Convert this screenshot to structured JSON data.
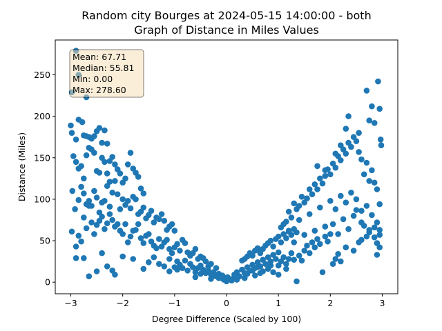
{
  "chart_data": {
    "type": "scatter",
    "title_line1": "Random city Bourges at 2024-05-15 14:00:00  - both",
    "title_line2": "Graph of Distance in Miles Values",
    "xlabel": "Degree Difference (Scaled by 100)",
    "ylabel": "Distance (Miles)",
    "xlim": [
      -3.3,
      3.3
    ],
    "ylim": [
      -14,
      292
    ],
    "xticks": [
      -3,
      -2,
      -1,
      0,
      1,
      2,
      3
    ],
    "yticks": [
      0,
      50,
      100,
      150,
      200,
      250
    ],
    "point_color": "#1f77b4",
    "stats": {
      "mean": "Mean: 67.71",
      "median": "Median: 55.81",
      "min": "Min: 0.00",
      "max": "Max: 278.60"
    },
    "points": [
      [
        -2.98,
        229
      ],
      [
        -2.9,
        279
      ],
      [
        -2.85,
        250
      ],
      [
        -2.7,
        223
      ],
      [
        -3.0,
        189
      ],
      [
        -2.98,
        180
      ],
      [
        -2.9,
        172
      ],
      [
        -2.85,
        196
      ],
      [
        -2.78,
        193
      ],
      [
        -2.75,
        177
      ],
      [
        -2.7,
        176
      ],
      [
        -2.65,
        175
      ],
      [
        -2.6,
        173
      ],
      [
        -2.55,
        176
      ],
      [
        -2.5,
        182
      ],
      [
        -2.45,
        186
      ],
      [
        -2.4,
        168
      ],
      [
        -2.35,
        183
      ],
      [
        -2.3,
        167
      ],
      [
        -2.25,
        146
      ],
      [
        -2.95,
        152
      ],
      [
        -2.9,
        145
      ],
      [
        -2.85,
        137
      ],
      [
        -2.8,
        140
      ],
      [
        -2.75,
        125
      ],
      [
        -2.7,
        153
      ],
      [
        -2.65,
        162
      ],
      [
        -2.6,
        160
      ],
      [
        -2.55,
        156
      ],
      [
        -2.5,
        134
      ],
      [
        -2.45,
        132
      ],
      [
        -2.4,
        150
      ],
      [
        -2.35,
        145
      ],
      [
        -2.3,
        131
      ],
      [
        -2.25,
        121
      ],
      [
        -2.2,
        151
      ],
      [
        -2.15,
        142
      ],
      [
        -2.1,
        136
      ],
      [
        -2.05,
        131
      ],
      [
        -2.0,
        120
      ],
      [
        -1.95,
        125
      ],
      [
        -1.9,
        142
      ],
      [
        -1.85,
        156
      ],
      [
        -1.8,
        137
      ],
      [
        -1.75,
        132
      ],
      [
        -1.7,
        127
      ],
      [
        -1.65,
        113
      ],
      [
        -1.6,
        107
      ],
      [
        -2.97,
        110
      ],
      [
        -2.92,
        88
      ],
      [
        -2.85,
        99
      ],
      [
        -2.8,
        115
      ],
      [
        -2.75,
        107
      ],
      [
        -2.7,
        94
      ],
      [
        -2.65,
        98
      ],
      [
        -2.6,
        92
      ],
      [
        -2.55,
        110
      ],
      [
        -2.5,
        102
      ],
      [
        -2.45,
        84
      ],
      [
        -2.4,
        96
      ],
      [
        -2.35,
        98
      ],
      [
        -2.3,
        116
      ],
      [
        -2.25,
        91
      ],
      [
        -2.2,
        108
      ],
      [
        -2.15,
        122
      ],
      [
        -2.1,
        106
      ],
      [
        -2.05,
        88
      ],
      [
        -2.0,
        100
      ],
      [
        -1.95,
        93
      ],
      [
        -1.9,
        98
      ],
      [
        -1.85,
        89
      ],
      [
        -1.8,
        103
      ],
      [
        -1.75,
        100
      ],
      [
        -1.7,
        82
      ],
      [
        -1.65,
        85
      ],
      [
        -1.6,
        90
      ],
      [
        -1.55,
        77
      ],
      [
        -1.5,
        81
      ],
      [
        -1.45,
        86
      ],
      [
        -1.4,
        72
      ],
      [
        -1.35,
        78
      ],
      [
        -1.3,
        76
      ],
      [
        -1.25,
        82
      ],
      [
        -1.2,
        74
      ],
      [
        -1.15,
        63
      ],
      [
        -1.1,
        67
      ],
      [
        -1.05,
        70
      ],
      [
        -1.0,
        62
      ],
      [
        -2.98,
        61
      ],
      [
        -2.9,
        43
      ],
      [
        -2.85,
        56
      ],
      [
        -2.8,
        49
      ],
      [
        -2.75,
        78
      ],
      [
        -2.7,
        65
      ],
      [
        -2.65,
        92
      ],
      [
        -2.6,
        72
      ],
      [
        -2.55,
        58
      ],
      [
        -2.5,
        69
      ],
      [
        -2.45,
        74
      ],
      [
        -2.4,
        79
      ],
      [
        -2.35,
        64
      ],
      [
        -2.3,
        71
      ],
      [
        -2.25,
        82
      ],
      [
        -2.2,
        75
      ],
      [
        -2.15,
        67
      ],
      [
        -2.1,
        70
      ],
      [
        -2.05,
        62
      ],
      [
        -2.0,
        58
      ],
      [
        -1.95,
        70
      ],
      [
        -1.9,
        48
      ],
      [
        -1.85,
        55
      ],
      [
        -1.8,
        62
      ],
      [
        -1.75,
        63
      ],
      [
        -1.7,
        70
      ],
      [
        -1.65,
        53
      ],
      [
        -1.6,
        47
      ],
      [
        -1.55,
        56
      ],
      [
        -1.5,
        58
      ],
      [
        -1.45,
        49
      ],
      [
        -1.4,
        44
      ],
      [
        -1.35,
        41
      ],
      [
        -1.3,
        52
      ],
      [
        -1.25,
        43
      ],
      [
        -1.2,
        48
      ],
      [
        -1.15,
        51
      ],
      [
        -1.1,
        40
      ],
      [
        -1.05,
        35
      ],
      [
        -1.0,
        42
      ],
      [
        -0.95,
        46
      ],
      [
        -0.9,
        38
      ],
      [
        -0.85,
        51
      ],
      [
        -0.8,
        47
      ],
      [
        -0.75,
        36
      ],
      [
        -0.7,
        32
      ],
      [
        -0.65,
        35
      ],
      [
        -0.6,
        40
      ],
      [
        -0.55,
        28
      ],
      [
        -0.5,
        31
      ],
      [
        -2.9,
        29
      ],
      [
        -2.75,
        29
      ],
      [
        -2.65,
        7
      ],
      [
        -2.5,
        13
      ],
      [
        -2.4,
        35
      ],
      [
        -2.3,
        19
      ],
      [
        -2.2,
        14
      ],
      [
        -2.15,
        9
      ],
      [
        -2.0,
        31
      ],
      [
        -1.8,
        28
      ],
      [
        -1.6,
        16
      ],
      [
        -1.5,
        24
      ],
      [
        -1.4,
        30
      ],
      [
        -1.3,
        22
      ],
      [
        -1.2,
        19
      ],
      [
        -1.1,
        13
      ],
      [
        -1.0,
        18
      ],
      [
        -0.95,
        25
      ],
      [
        -0.9,
        21
      ],
      [
        -0.85,
        17
      ],
      [
        -0.8,
        26
      ],
      [
        -0.75,
        14
      ],
      [
        -0.7,
        22
      ],
      [
        -0.65,
        18
      ],
      [
        -0.6,
        12
      ],
      [
        -0.55,
        17
      ],
      [
        -0.5,
        20
      ],
      [
        -0.45,
        15
      ],
      [
        -0.4,
        11
      ],
      [
        -0.35,
        14
      ],
      [
        -0.3,
        9
      ],
      [
        -0.25,
        12
      ],
      [
        -0.2,
        7
      ],
      [
        -0.15,
        10
      ],
      [
        -0.1,
        5
      ],
      [
        -0.05,
        3
      ],
      [
        0.0,
        1
      ],
      [
        0.05,
        4
      ],
      [
        0.1,
        2
      ],
      [
        -0.4,
        25
      ],
      [
        -0.3,
        22
      ],
      [
        -0.2,
        17
      ],
      [
        -0.45,
        29
      ],
      [
        -0.35,
        19
      ],
      [
        -0.25,
        8
      ],
      [
        -0.15,
        5
      ],
      [
        -0.08,
        8
      ],
      [
        0.02,
        6
      ],
      [
        0.12,
        4
      ],
      [
        0.15,
        9
      ],
      [
        0.2,
        12
      ],
      [
        0.25,
        7
      ],
      [
        0.3,
        15
      ],
      [
        0.35,
        11
      ],
      [
        0.4,
        18
      ],
      [
        0.45,
        14
      ],
      [
        0.5,
        21
      ],
      [
        0.55,
        17
      ],
      [
        0.6,
        24
      ],
      [
        0.65,
        19
      ],
      [
        0.7,
        27
      ],
      [
        0.75,
        22
      ],
      [
        0.8,
        30
      ],
      [
        0.85,
        25
      ],
      [
        0.9,
        33
      ],
      [
        0.95,
        28
      ],
      [
        1.0,
        36
      ],
      [
        0.3,
        26
      ],
      [
        0.35,
        28
      ],
      [
        0.4,
        31
      ],
      [
        0.45,
        35
      ],
      [
        0.5,
        32
      ],
      [
        0.55,
        38
      ],
      [
        0.6,
        41
      ],
      [
        0.65,
        35
      ],
      [
        0.7,
        40
      ],
      [
        0.75,
        44
      ],
      [
        0.8,
        47
      ],
      [
        0.85,
        50
      ],
      [
        0.9,
        43
      ],
      [
        0.95,
        52
      ],
      [
        1.0,
        55
      ],
      [
        1.05,
        48
      ],
      [
        1.1,
        58
      ],
      [
        1.15,
        53
      ],
      [
        1.2,
        61
      ],
      [
        1.25,
        57
      ],
      [
        1.3,
        64
      ],
      [
        1.35,
        60
      ],
      [
        0.4,
        10
      ],
      [
        0.5,
        14
      ],
      [
        0.6,
        18
      ],
      [
        0.7,
        13
      ],
      [
        0.8,
        16
      ],
      [
        0.9,
        12
      ],
      [
        1.0,
        20
      ],
      [
        1.05,
        25
      ],
      [
        1.1,
        30
      ],
      [
        1.15,
        22
      ],
      [
        1.2,
        28
      ],
      [
        1.25,
        35
      ],
      [
        1.3,
        27
      ],
      [
        1.35,
        1
      ],
      [
        1.4,
        32
      ],
      [
        1.45,
        26
      ],
      [
        1.5,
        38
      ],
      [
        1.55,
        44
      ],
      [
        1.6,
        35
      ],
      [
        1.65,
        48
      ],
      [
        1.7,
        42
      ],
      [
        1.75,
        52
      ],
      [
        1.8,
        46
      ],
      [
        1.85,
        12
      ],
      [
        1.9,
        55
      ],
      [
        1.95,
        49
      ],
      [
        2.0,
        58
      ],
      [
        2.05,
        22
      ],
      [
        2.1,
        28
      ],
      [
        2.15,
        34
      ],
      [
        2.2,
        25
      ],
      [
        2.3,
        42
      ],
      [
        2.45,
        38
      ],
      [
        2.55,
        48
      ],
      [
        2.6,
        51
      ],
      [
        2.7,
        55
      ],
      [
        2.75,
        60
      ],
      [
        2.85,
        54
      ],
      [
        2.9,
        33
      ],
      [
        2.95,
        57
      ],
      [
        1.05,
        66
      ],
      [
        1.1,
        70
      ],
      [
        1.15,
        73
      ],
      [
        1.2,
        85
      ],
      [
        1.25,
        78
      ],
      [
        1.3,
        95
      ],
      [
        1.35,
        88
      ],
      [
        1.4,
        92
      ],
      [
        1.45,
        103
      ],
      [
        1.5,
        96
      ],
      [
        1.55,
        101
      ],
      [
        1.6,
        112
      ],
      [
        1.65,
        106
      ],
      [
        1.7,
        118
      ],
      [
        1.75,
        112
      ],
      [
        1.8,
        125
      ],
      [
        1.85,
        119
      ],
      [
        1.9,
        128
      ],
      [
        1.95,
        136
      ],
      [
        2.0,
        130
      ],
      [
        2.05,
        143
      ],
      [
        2.1,
        138
      ],
      [
        2.15,
        152
      ],
      [
        2.2,
        147
      ],
      [
        2.25,
        160
      ],
      [
        2.3,
        155
      ],
      [
        2.35,
        168
      ],
      [
        2.4,
        163
      ],
      [
        2.45,
        175
      ],
      [
        2.5,
        170
      ],
      [
        2.55,
        157
      ],
      [
        2.6,
        148
      ],
      [
        2.65,
        130
      ],
      [
        2.7,
        144
      ],
      [
        2.75,
        122
      ],
      [
        2.8,
        135
      ],
      [
        2.85,
        120
      ],
      [
        2.9,
        112
      ],
      [
        2.95,
        94
      ],
      [
        1.2,
        62
      ],
      [
        1.4,
        75
      ],
      [
        1.6,
        82
      ],
      [
        1.8,
        90
      ],
      [
        2.0,
        98
      ],
      [
        2.1,
        88
      ],
      [
        2.2,
        104
      ],
      [
        2.3,
        96
      ],
      [
        2.4,
        108
      ],
      [
        2.5,
        100
      ],
      [
        2.6,
        86
      ],
      [
        2.7,
        92
      ],
      [
        2.8,
        81
      ],
      [
        2.9,
        72
      ],
      [
        2.95,
        63
      ],
      [
        1.75,
        140
      ],
      [
        1.9,
        135
      ],
      [
        2.1,
        155
      ],
      [
        2.2,
        165
      ],
      [
        2.3,
        185
      ],
      [
        2.35,
        200
      ],
      [
        2.55,
        180
      ],
      [
        2.7,
        231
      ],
      [
        2.75,
        195
      ],
      [
        2.8,
        212
      ],
      [
        2.85,
        192
      ],
      [
        2.92,
        242
      ],
      [
        2.95,
        209
      ],
      [
        2.97,
        172
      ],
      [
        2.98,
        165
      ],
      [
        1.3,
        48
      ],
      [
        1.5,
        57
      ],
      [
        1.7,
        62
      ],
      [
        1.9,
        67
      ],
      [
        2.05,
        70
      ],
      [
        2.15,
        58
      ],
      [
        2.25,
        76
      ],
      [
        2.35,
        64
      ],
      [
        2.45,
        80
      ],
      [
        2.5,
        87
      ],
      [
        2.6,
        72
      ],
      [
        2.65,
        68
      ],
      [
        2.75,
        63
      ],
      [
        2.85,
        66
      ],
      [
        2.9,
        47
      ],
      [
        2.95,
        42
      ],
      [
        -1.1,
        28
      ],
      [
        -0.95,
        15
      ],
      [
        -0.6,
        6
      ],
      [
        -0.5,
        10
      ],
      [
        -0.3,
        4
      ],
      [
        0.2,
        3
      ],
      [
        0.35,
        5
      ],
      [
        0.55,
        8
      ],
      [
        0.65,
        11
      ],
      [
        0.85,
        20
      ],
      [
        1.0,
        9
      ],
      [
        1.15,
        16
      ]
    ]
  }
}
